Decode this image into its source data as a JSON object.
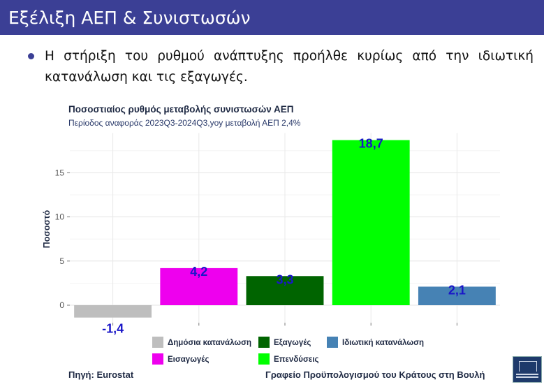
{
  "header": {
    "title": "Εξέλιξη ΑΕΠ & Συνιστωσών"
  },
  "bullet": {
    "text": "Η στήριξη του ρυθμού ανάπτυξης προήλθε κυρίως από την ιδιωτική κατανάλωση και τις εξαγωγές."
  },
  "chart_data": {
    "type": "bar",
    "title": "Ποσοστιαίος ρυθμός μεταβολής συνιστωσών ΑΕΠ",
    "subtitle": "Περίοδος αναφοράς 2023Q3-2024Q3,yoy μεταβολή ΑΕΠ 2,4%",
    "ylabel": "Ποσοστό",
    "ylim": [
      -2,
      19.5
    ],
    "yticks": [
      0,
      5,
      10,
      15
    ],
    "grid": true,
    "categories": [
      "Δημόσια κατανάλωση",
      "Εισαγωγές",
      "Εξαγωγές",
      "Επενδύσεις",
      "Ιδιωτική κατανάλωση"
    ],
    "values": [
      -1.4,
      4.2,
      3.3,
      18.7,
      2.1
    ],
    "value_labels": [
      "-1,4",
      "4,2",
      "3,3",
      "18,7",
      "2,1"
    ],
    "colors": [
      "#bebebe",
      "#ee00ee",
      "#006400",
      "#00ff00",
      "#4682b4"
    ],
    "legend_position": "bottom",
    "legend": [
      {
        "name": "Δημόσια κατανάλωση",
        "color": "#bebebe"
      },
      {
        "name": "Εξαγωγές",
        "color": "#006400"
      },
      {
        "name": "Ιδιωτική κατανάλωση",
        "color": "#4682b4"
      },
      {
        "name": "Εισαγωγές",
        "color": "#ee00ee"
      },
      {
        "name": "Επενδύσεις",
        "color": "#00ff00"
      }
    ]
  },
  "footer": {
    "source": "Πηγή: Eurostat",
    "office": "Γραφείο Προϋπολογισμού του Κράτους στη Βουλή"
  }
}
